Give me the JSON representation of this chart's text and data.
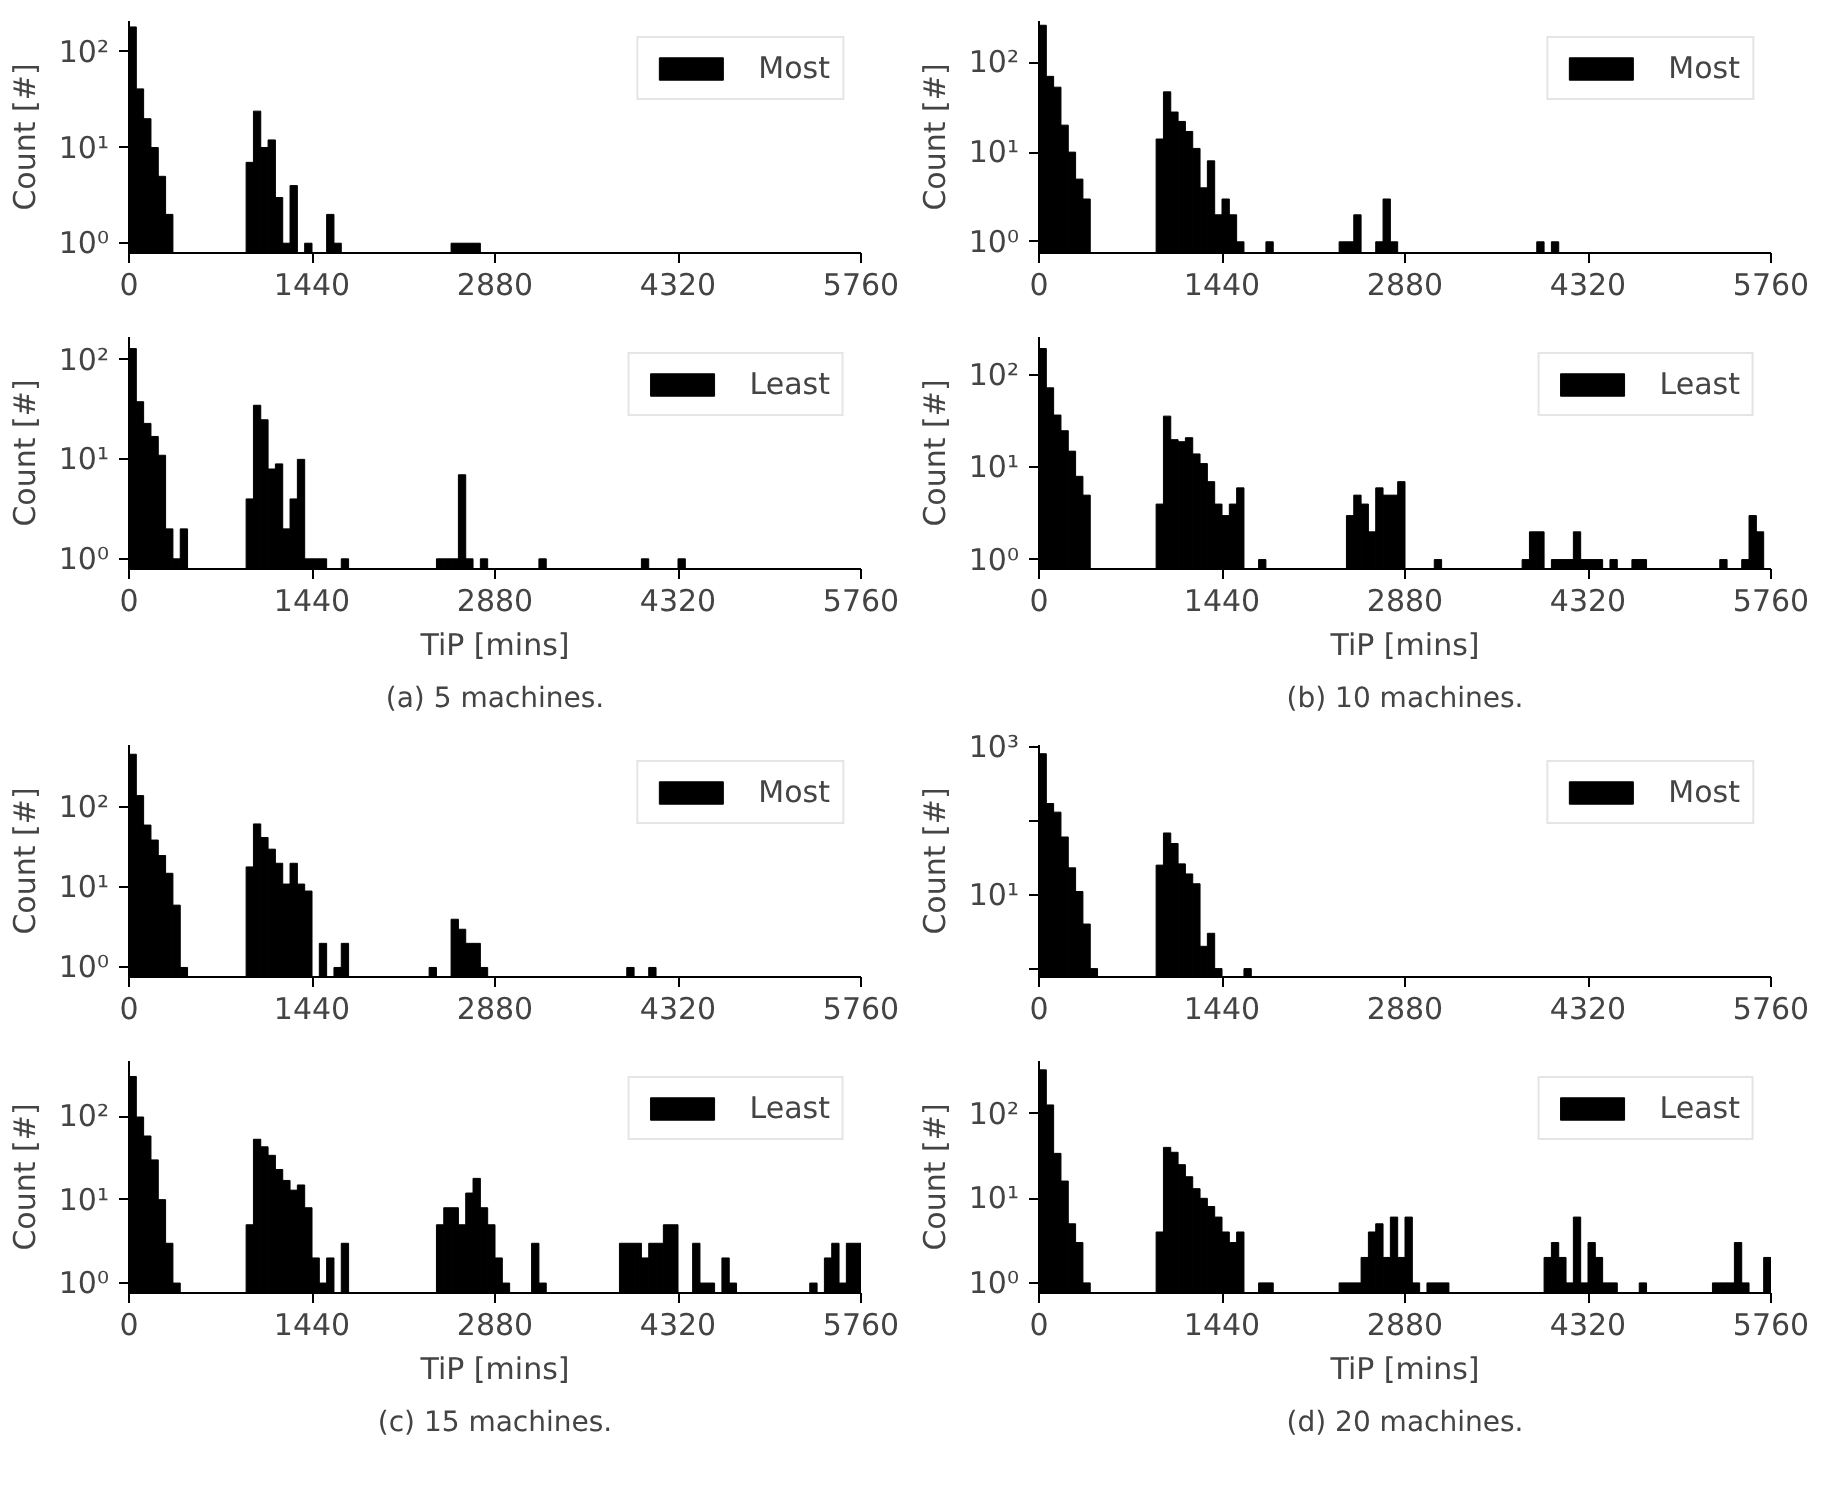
{
  "chart_data": [
    {
      "type": "histogram",
      "ylabel": "Count [#]",
      "log": true,
      "legend": "top right",
      "xlim": [
        0,
        5760
      ],
      "xticks": [
        0,
        1440,
        2880,
        4320,
        5760
      ],
      "ylim": [
        0.79,
        210
      ],
      "yticks": [
        {
          "value": 1,
          "label": "10⁰"
        },
        {
          "value": 10,
          "label": "10¹"
        },
        {
          "value": 100,
          "label": "10²"
        }
      ],
      "bins": [
        0,
        57.6,
        115.2,
        172.8,
        230.4,
        288,
        345.6,
        403.2,
        460.8,
        518.4,
        576,
        633.6,
        691.2,
        748.8,
        806.4,
        864,
        921.6,
        979.2,
        1036.8,
        1094.4,
        1152,
        1209.6,
        1267.2,
        1324.8,
        1382.4,
        1440,
        1497.6,
        1555.2,
        1612.8,
        1670.4,
        1728,
        1785.6,
        1843.2,
        1900.8,
        1958.4,
        2016,
        2073.6,
        2131.2,
        2188.8,
        2246.4,
        2304,
        2361.6,
        2419.2,
        2476.8,
        2534.4,
        2592,
        2649.6,
        2707.2,
        2764.8,
        2822.4,
        2880,
        2937.6,
        2995.2,
        3052.8,
        3110.4,
        3168,
        3225.6,
        3283.2,
        3340.8,
        3398.4,
        3456,
        3513.6,
        3571.2,
        3628.8,
        3686.4,
        3744,
        3801.6,
        3859.2,
        3916.8,
        3974.4,
        4032,
        4089.6,
        4147.2,
        4204.8,
        4262.4,
        4320,
        4377.6,
        4435.2,
        4492.8,
        4550.4,
        4608,
        4665.6,
        4723.2,
        4780.8,
        4838.4,
        4896,
        4953.6,
        5011.2,
        5068.8,
        5126.4,
        5184,
        5241.6,
        5299.2,
        5356.8,
        5414.4,
        5472,
        5529.6,
        5587.2,
        5644.8,
        5702.4,
        5760
      ],
      "series": [
        {
          "name": "Most",
          "color": "#000000",
          "values": [
            182,
            41,
            20,
            10,
            5,
            2,
            null,
            null,
            null,
            null,
            null,
            null,
            null,
            null,
            null,
            null,
            7,
            24,
            10,
            12,
            3,
            1,
            4,
            null,
            1,
            null,
            null,
            2,
            1,
            null,
            null,
            null,
            null,
            null,
            null,
            null,
            null,
            null,
            null,
            null,
            null,
            null,
            null,
            null,
            1,
            1,
            1,
            1,
            null,
            null,
            null,
            null,
            null,
            null,
            null,
            null,
            null,
            null,
            null,
            null,
            null,
            null,
            null,
            null,
            null,
            null,
            null,
            null,
            null,
            null,
            null,
            null,
            null,
            null,
            null,
            null,
            null,
            null,
            null,
            null,
            null,
            null,
            null,
            null,
            null,
            null,
            null,
            null,
            null,
            null,
            null,
            null,
            null,
            null,
            null,
            null,
            null,
            null,
            null,
            null
          ]
        }
      ]
    },
    {
      "type": "histogram",
      "ylabel": "Count [#]",
      "xlabel": "TiP [mins]",
      "annotations": [
        "(a) 5 machines."
      ],
      "log": true,
      "legend": "top right",
      "xlim": [
        0,
        5760
      ],
      "xticks": [
        0,
        1440,
        2880,
        4320,
        5760
      ],
      "ylim": [
        0.79,
        170
      ],
      "yticks": [
        {
          "value": 1,
          "label": "10⁰"
        },
        {
          "value": 10,
          "label": "10¹"
        },
        {
          "value": 100,
          "label": "10²"
        }
      ],
      "bins": [
        0,
        57.6,
        115.2,
        172.8,
        230.4,
        288,
        345.6,
        403.2,
        460.8,
        518.4,
        576,
        633.6,
        691.2,
        748.8,
        806.4,
        864,
        921.6,
        979.2,
        1036.8,
        1094.4,
        1152,
        1209.6,
        1267.2,
        1324.8,
        1382.4,
        1440,
        1497.6,
        1555.2,
        1612.8,
        1670.4,
        1728,
        1785.6,
        1843.2,
        1900.8,
        1958.4,
        2016,
        2073.6,
        2131.2,
        2188.8,
        2246.4,
        2304,
        2361.6,
        2419.2,
        2476.8,
        2534.4,
        2592,
        2649.6,
        2707.2,
        2764.8,
        2822.4,
        2880,
        2937.6,
        2995.2,
        3052.8,
        3110.4,
        3168,
        3225.6,
        3283.2,
        3340.8,
        3398.4,
        3456,
        3513.6,
        3571.2,
        3628.8,
        3686.4,
        3744,
        3801.6,
        3859.2,
        3916.8,
        3974.4,
        4032,
        4089.6,
        4147.2,
        4204.8,
        4262.4,
        4320,
        4377.6,
        4435.2,
        4492.8,
        4550.4,
        4608,
        4665.6,
        4723.2,
        4780.8,
        4838.4,
        4896,
        4953.6,
        5011.2,
        5068.8,
        5126.4,
        5184,
        5241.6,
        5299.2,
        5356.8,
        5414.4,
        5472,
        5529.6,
        5587.2,
        5644.8,
        5702.4,
        5760
      ],
      "series": [
        {
          "name": "Least",
          "color": "#000000",
          "values": [
            130,
            38,
            23,
            17,
            11,
            2,
            1,
            2,
            null,
            null,
            null,
            null,
            null,
            null,
            null,
            null,
            4,
            35,
            25,
            8,
            9,
            2,
            4,
            10,
            1,
            1,
            1,
            null,
            null,
            1,
            null,
            null,
            null,
            null,
            null,
            null,
            null,
            null,
            null,
            null,
            null,
            null,
            1,
            1,
            1,
            7,
            1,
            null,
            1,
            null,
            null,
            null,
            null,
            null,
            null,
            null,
            1,
            null,
            null,
            null,
            null,
            null,
            null,
            null,
            null,
            null,
            null,
            null,
            null,
            null,
            1,
            null,
            null,
            null,
            null,
            1,
            null,
            null,
            null,
            null,
            null,
            null,
            null,
            null,
            null,
            null,
            null,
            null,
            null,
            null,
            null,
            null,
            null,
            null,
            null,
            null,
            null,
            null,
            null,
            null
          ]
        }
      ]
    },
    {
      "type": "histogram",
      "ylabel": "Count [#]",
      "log": true,
      "legend": "top right",
      "xlim": [
        0,
        5760
      ],
      "xticks": [
        0,
        1440,
        2880,
        4320,
        5760
      ],
      "ylim": [
        0.75,
        290
      ],
      "yticks": [
        {
          "value": 1,
          "label": "10⁰"
        },
        {
          "value": 10,
          "label": "10¹"
        },
        {
          "value": 100,
          "label": "10²"
        }
      ],
      "bins": [
        0,
        57.6,
        115.2,
        172.8,
        230.4,
        288,
        345.6,
        403.2,
        460.8,
        518.4,
        576,
        633.6,
        691.2,
        748.8,
        806.4,
        864,
        921.6,
        979.2,
        1036.8,
        1094.4,
        1152,
        1209.6,
        1267.2,
        1324.8,
        1382.4,
        1440,
        1497.6,
        1555.2,
        1612.8,
        1670.4,
        1728,
        1785.6,
        1843.2,
        1900.8,
        1958.4,
        2016,
        2073.6,
        2131.2,
        2188.8,
        2246.4,
        2304,
        2361.6,
        2419.2,
        2476.8,
        2534.4,
        2592,
        2649.6,
        2707.2,
        2764.8,
        2822.4,
        2880,
        2937.6,
        2995.2,
        3052.8,
        3110.4,
        3168,
        3225.6,
        3283.2,
        3340.8,
        3398.4,
        3456,
        3513.6,
        3571.2,
        3628.8,
        3686.4,
        3744,
        3801.6,
        3859.2,
        3916.8,
        3974.4,
        4032,
        4089.6,
        4147.2,
        4204.8,
        4262.4,
        4320,
        4377.6,
        4435.2,
        4492.8,
        4550.4,
        4608,
        4665.6,
        4723.2,
        4780.8,
        4838.4,
        4896,
        4953.6,
        5011.2,
        5068.8,
        5126.4,
        5184,
        5241.6,
        5299.2,
        5356.8,
        5414.4,
        5472,
        5529.6,
        5587.2,
        5644.8,
        5702.4,
        5760
      ],
      "series": [
        {
          "name": "Most",
          "color": "#000000",
          "values": [
            260,
            70,
            53,
            20,
            10,
            5,
            3,
            null,
            null,
            null,
            null,
            null,
            null,
            null,
            null,
            null,
            14,
            47,
            28,
            22,
            17,
            11,
            4,
            8,
            2,
            3,
            2,
            1,
            null,
            null,
            null,
            1,
            null,
            null,
            null,
            null,
            null,
            null,
            null,
            null,
            null,
            1,
            1,
            2,
            null,
            null,
            1,
            3,
            1,
            null,
            null,
            null,
            null,
            null,
            null,
            null,
            null,
            null,
            null,
            null,
            null,
            null,
            null,
            null,
            null,
            null,
            null,
            null,
            1,
            null,
            1,
            null,
            null,
            null,
            null,
            null,
            null,
            null,
            null,
            null,
            null,
            null,
            null,
            null,
            null,
            null,
            null,
            null,
            null,
            null,
            null,
            null,
            null,
            null,
            null,
            null,
            null,
            null,
            null,
            null
          ]
        }
      ]
    },
    {
      "type": "histogram",
      "ylabel": "Count [#]",
      "xlabel": "TiP [mins]",
      "annotations": [
        "(b) 10 machines."
      ],
      "log": true,
      "legend": "top right",
      "xlim": [
        0,
        5760
      ],
      "xticks": [
        0,
        1440,
        2880,
        4320,
        5760
      ],
      "ylim": [
        0.79,
        260
      ],
      "yticks": [
        {
          "value": 1,
          "label": "10⁰"
        },
        {
          "value": 10,
          "label": "10¹"
        },
        {
          "value": 100,
          "label": "10²"
        }
      ],
      "bins": [
        0,
        57.6,
        115.2,
        172.8,
        230.4,
        288,
        345.6,
        403.2,
        460.8,
        518.4,
        576,
        633.6,
        691.2,
        748.8,
        806.4,
        864,
        921.6,
        979.2,
        1036.8,
        1094.4,
        1152,
        1209.6,
        1267.2,
        1324.8,
        1382.4,
        1440,
        1497.6,
        1555.2,
        1612.8,
        1670.4,
        1728,
        1785.6,
        1843.2,
        1900.8,
        1958.4,
        2016,
        2073.6,
        2131.2,
        2188.8,
        2246.4,
        2304,
        2361.6,
        2419.2,
        2476.8,
        2534.4,
        2592,
        2649.6,
        2707.2,
        2764.8,
        2822.4,
        2880,
        2937.6,
        2995.2,
        3052.8,
        3110.4,
        3168,
        3225.6,
        3283.2,
        3340.8,
        3398.4,
        3456,
        3513.6,
        3571.2,
        3628.8,
        3686.4,
        3744,
        3801.6,
        3859.2,
        3916.8,
        3974.4,
        4032,
        4089.6,
        4147.2,
        4204.8,
        4262.4,
        4320,
        4377.6,
        4435.2,
        4492.8,
        4550.4,
        4608,
        4665.6,
        4723.2,
        4780.8,
        4838.4,
        4896,
        4953.6,
        5011.2,
        5068.8,
        5126.4,
        5184,
        5241.6,
        5299.2,
        5356.8,
        5414.4,
        5472,
        5529.6,
        5587.2,
        5644.8,
        5702.4,
        5760
      ],
      "series": [
        {
          "name": "Least",
          "color": "#000000",
          "values": [
            195,
            73,
            37,
            25,
            15,
            8,
            5,
            null,
            null,
            null,
            null,
            null,
            null,
            null,
            null,
            null,
            4,
            36,
            20,
            19,
            21,
            14,
            11,
            7,
            4,
            3,
            4,
            6,
            null,
            null,
            1,
            null,
            null,
            null,
            null,
            null,
            null,
            null,
            null,
            null,
            null,
            null,
            3,
            5,
            4,
            2,
            6,
            5,
            5,
            7,
            null,
            null,
            null,
            null,
            1,
            null,
            null,
            null,
            null,
            null,
            null,
            null,
            null,
            null,
            null,
            null,
            1,
            2,
            2,
            null,
            1,
            1,
            1,
            2,
            1,
            1,
            1,
            null,
            1,
            null,
            null,
            1,
            1,
            null,
            null,
            null,
            null,
            null,
            null,
            null,
            null,
            null,
            null,
            1,
            null,
            null,
            1,
            3,
            2,
            null
          ]
        }
      ]
    },
    {
      "type": "histogram",
      "ylabel": "Count [#]",
      "log": true,
      "legend": "top right",
      "xlim": [
        0,
        5760
      ],
      "xticks": [
        0,
        1440,
        2880,
        4320,
        5760
      ],
      "ylim": [
        0.76,
        600
      ],
      "yticks": [
        {
          "value": 1,
          "label": "10⁰"
        },
        {
          "value": 10,
          "label": "10¹"
        },
        {
          "value": 100,
          "label": "10²"
        }
      ],
      "bins": [
        0,
        57.6,
        115.2,
        172.8,
        230.4,
        288,
        345.6,
        403.2,
        460.8,
        518.4,
        576,
        633.6,
        691.2,
        748.8,
        806.4,
        864,
        921.6,
        979.2,
        1036.8,
        1094.4,
        1152,
        1209.6,
        1267.2,
        1324.8,
        1382.4,
        1440,
        1497.6,
        1555.2,
        1612.8,
        1670.4,
        1728,
        1785.6,
        1843.2,
        1900.8,
        1958.4,
        2016,
        2073.6,
        2131.2,
        2188.8,
        2246.4,
        2304,
        2361.6,
        2419.2,
        2476.8,
        2534.4,
        2592,
        2649.6,
        2707.2,
        2764.8,
        2822.4,
        2880,
        2937.6,
        2995.2,
        3052.8,
        3110.4,
        3168,
        3225.6,
        3283.2,
        3340.8,
        3398.4,
        3456,
        3513.6,
        3571.2,
        3628.8,
        3686.4,
        3744,
        3801.6,
        3859.2,
        3916.8,
        3974.4,
        4032,
        4089.6,
        4147.2,
        4204.8,
        4262.4,
        4320,
        4377.6,
        4435.2,
        4492.8,
        4550.4,
        4608,
        4665.6,
        4723.2,
        4780.8,
        4838.4,
        4896,
        4953.6,
        5011.2,
        5068.8,
        5126.4,
        5184,
        5241.6,
        5299.2,
        5356.8,
        5414.4,
        5472,
        5529.6,
        5587.2,
        5644.8,
        5702.4,
        5760
      ],
      "series": [
        {
          "name": "Most",
          "color": "#000000",
          "values": [
            460,
            140,
            60,
            39,
            25,
            15,
            6,
            1,
            null,
            null,
            null,
            null,
            null,
            null,
            null,
            null,
            18,
            62,
            42,
            30,
            20,
            11,
            20,
            11,
            9,
            null,
            2,
            null,
            1,
            2,
            null,
            null,
            null,
            null,
            null,
            null,
            null,
            null,
            null,
            null,
            null,
            1,
            null,
            null,
            4,
            3,
            2,
            2,
            1,
            null,
            null,
            null,
            null,
            null,
            null,
            null,
            null,
            null,
            null,
            null,
            null,
            null,
            null,
            null,
            null,
            null,
            null,
            null,
            1,
            null,
            null,
            1,
            null,
            null,
            null,
            null,
            null,
            null,
            null,
            null,
            null,
            null,
            null,
            null,
            null,
            null,
            null,
            null,
            null,
            null,
            null,
            null,
            null,
            null,
            null,
            null,
            null,
            null,
            null,
            null
          ]
        }
      ]
    },
    {
      "type": "histogram",
      "ylabel": "Count [#]",
      "xlabel": "TiP [mins]",
      "annotations": [
        "(c) 15 machines."
      ],
      "log": true,
      "legend": "top right",
      "xlim": [
        0,
        5760
      ],
      "xticks": [
        0,
        1440,
        2880,
        4320,
        5760
      ],
      "ylim": [
        0.76,
        460
      ],
      "yticks": [
        {
          "value": 1,
          "label": "10⁰"
        },
        {
          "value": 10,
          "label": "10¹"
        },
        {
          "value": 100,
          "label": "10²"
        }
      ],
      "bins": [
        0,
        57.6,
        115.2,
        172.8,
        230.4,
        288,
        345.6,
        403.2,
        460.8,
        518.4,
        576,
        633.6,
        691.2,
        748.8,
        806.4,
        864,
        921.6,
        979.2,
        1036.8,
        1094.4,
        1152,
        1209.6,
        1267.2,
        1324.8,
        1382.4,
        1440,
        1497.6,
        1555.2,
        1612.8,
        1670.4,
        1728,
        1785.6,
        1843.2,
        1900.8,
        1958.4,
        2016,
        2073.6,
        2131.2,
        2188.8,
        2246.4,
        2304,
        2361.6,
        2419.2,
        2476.8,
        2534.4,
        2592,
        2649.6,
        2707.2,
        2764.8,
        2822.4,
        2880,
        2937.6,
        2995.2,
        3052.8,
        3110.4,
        3168,
        3225.6,
        3283.2,
        3340.8,
        3398.4,
        3456,
        3513.6,
        3571.2,
        3628.8,
        3686.4,
        3744,
        3801.6,
        3859.2,
        3916.8,
        3974.4,
        4032,
        4089.6,
        4147.2,
        4204.8,
        4262.4,
        4320,
        4377.6,
        4435.2,
        4492.8,
        4550.4,
        4608,
        4665.6,
        4723.2,
        4780.8,
        4838.4,
        4896,
        4953.6,
        5011.2,
        5068.8,
        5126.4,
        5184,
        5241.6,
        5299.2,
        5356.8,
        5414.4,
        5472,
        5529.6,
        5587.2,
        5644.8,
        5702.4,
        5760
      ],
      "series": [
        {
          "name": "Least",
          "color": "#000000",
          "values": [
            300,
            98,
            58,
            30,
            10,
            3,
            1,
            null,
            null,
            null,
            null,
            null,
            null,
            null,
            null,
            null,
            5,
            53,
            43,
            34,
            23,
            17,
            13,
            15,
            8,
            2,
            1,
            2,
            null,
            3,
            null,
            null,
            null,
            null,
            null,
            null,
            null,
            null,
            null,
            null,
            null,
            null,
            5,
            8,
            8,
            5,
            12,
            18,
            8,
            5,
            2,
            1,
            null,
            null,
            null,
            3,
            1,
            null,
            null,
            null,
            null,
            null,
            null,
            null,
            null,
            null,
            null,
            3,
            3,
            3,
            2,
            3,
            3,
            5,
            5,
            null,
            null,
            3,
            1,
            1,
            null,
            2,
            1,
            null,
            null,
            null,
            null,
            null,
            null,
            null,
            null,
            null,
            null,
            1,
            null,
            2,
            3,
            1,
            3,
            3
          ]
        }
      ]
    },
    {
      "type": "histogram",
      "ylabel": "Count [#]",
      "log": true,
      "legend": "top right",
      "xlim": [
        0,
        5760
      ],
      "xticks": [
        0,
        1440,
        2880,
        4320,
        5760
      ],
      "ylim": [
        0.77,
        1050
      ],
      "yticks": [
        {
          "value": 1,
          "label": null
        },
        {
          "value": 10,
          "label": "10¹"
        },
        {
          "value": 100,
          "label": null
        },
        {
          "value": 1000,
          "label": "10³"
        }
      ],
      "bins": [
        0,
        57.6,
        115.2,
        172.8,
        230.4,
        288,
        345.6,
        403.2,
        460.8,
        518.4,
        576,
        633.6,
        691.2,
        748.8,
        806.4,
        864,
        921.6,
        979.2,
        1036.8,
        1094.4,
        1152,
        1209.6,
        1267.2,
        1324.8,
        1382.4,
        1440,
        1497.6,
        1555.2,
        1612.8,
        1670.4,
        1728,
        1785.6,
        1843.2,
        1900.8,
        1958.4,
        2016,
        2073.6,
        2131.2,
        2188.8,
        2246.4,
        2304,
        2361.6,
        2419.2,
        2476.8,
        2534.4,
        2592,
        2649.6,
        2707.2,
        2764.8,
        2822.4,
        2880,
        2937.6,
        2995.2,
        3052.8,
        3110.4,
        3168,
        3225.6,
        3283.2,
        3340.8,
        3398.4,
        3456,
        3513.6,
        3571.2,
        3628.8,
        3686.4,
        3744,
        3801.6,
        3859.2,
        3916.8,
        3974.4,
        4032,
        4089.6,
        4147.2,
        4204.8,
        4262.4,
        4320,
        4377.6,
        4435.2,
        4492.8,
        4550.4,
        4608,
        4665.6,
        4723.2,
        4780.8,
        4838.4,
        4896,
        4953.6,
        5011.2,
        5068.8,
        5126.4,
        5184,
        5241.6,
        5299.2,
        5356.8,
        5414.4,
        5472,
        5529.6,
        5587.2,
        5644.8,
        5702.4,
        5760
      ],
      "series": [
        {
          "name": "Most",
          "color": "#000000",
          "values": [
            800,
            170,
            130,
            60,
            23,
            11,
            4,
            1,
            null,
            null,
            null,
            null,
            null,
            null,
            null,
            null,
            25,
            68,
            49,
            26,
            19,
            14,
            2,
            3,
            1,
            null,
            null,
            null,
            1,
            null,
            null,
            null,
            null,
            null,
            null,
            null,
            null,
            null,
            null,
            null,
            null,
            null,
            null,
            null,
            null,
            null,
            null,
            null,
            null,
            null,
            null,
            null,
            null,
            null,
            null,
            null,
            null,
            null,
            null,
            null,
            null,
            null,
            null,
            null,
            null,
            null,
            null,
            null,
            null,
            null,
            null,
            null,
            null,
            null,
            null,
            null,
            null,
            null,
            null,
            null,
            null,
            null,
            null,
            null,
            null,
            null,
            null,
            null,
            null,
            null,
            null,
            null,
            null,
            null,
            null,
            null,
            null,
            null,
            null,
            null
          ]
        }
      ]
    },
    {
      "type": "histogram",
      "ylabel": "Count [#]",
      "xlabel": "TiP [mins]",
      "annotations": [
        "(d) 20 machines."
      ],
      "log": true,
      "legend": "top right",
      "xlim": [
        0,
        5760
      ],
      "xticks": [
        0,
        1440,
        2880,
        4320,
        5760
      ],
      "ylim": [
        0.76,
        420
      ],
      "yticks": [
        {
          "value": 1,
          "label": "10⁰"
        },
        {
          "value": 10,
          "label": "10¹"
        },
        {
          "value": 100,
          "label": "10²"
        }
      ],
      "bins": [
        0,
        57.6,
        115.2,
        172.8,
        230.4,
        288,
        345.6,
        403.2,
        460.8,
        518.4,
        576,
        633.6,
        691.2,
        748.8,
        806.4,
        864,
        921.6,
        979.2,
        1036.8,
        1094.4,
        1152,
        1209.6,
        1267.2,
        1324.8,
        1382.4,
        1440,
        1497.6,
        1555.2,
        1612.8,
        1670.4,
        1728,
        1785.6,
        1843.2,
        1900.8,
        1958.4,
        2016,
        2073.6,
        2131.2,
        2188.8,
        2246.4,
        2304,
        2361.6,
        2419.2,
        2476.8,
        2534.4,
        2592,
        2649.6,
        2707.2,
        2764.8,
        2822.4,
        2880,
        2937.6,
        2995.2,
        3052.8,
        3110.4,
        3168,
        3225.6,
        3283.2,
        3340.8,
        3398.4,
        3456,
        3513.6,
        3571.2,
        3628.8,
        3686.4,
        3744,
        3801.6,
        3859.2,
        3916.8,
        3974.4,
        4032,
        4089.6,
        4147.2,
        4204.8,
        4262.4,
        4320,
        4377.6,
        4435.2,
        4492.8,
        4550.4,
        4608,
        4665.6,
        4723.2,
        4780.8,
        4838.4,
        4896,
        4953.6,
        5011.2,
        5068.8,
        5126.4,
        5184,
        5241.6,
        5299.2,
        5356.8,
        5414.4,
        5472,
        5529.6,
        5587.2,
        5644.8,
        5702.4,
        5760
      ],
      "series": [
        {
          "name": "Least",
          "color": "#000000",
          "values": [
            330,
            127,
            34,
            16,
            5,
            3,
            1,
            null,
            null,
            null,
            null,
            null,
            null,
            null,
            null,
            null,
            4,
            40,
            35,
            25,
            18,
            13,
            10,
            8,
            6,
            4,
            3,
            4,
            null,
            null,
            1,
            1,
            null,
            null,
            null,
            null,
            null,
            null,
            null,
            null,
            null,
            1,
            1,
            1,
            2,
            4,
            5,
            2,
            6,
            2,
            6,
            1,
            null,
            1,
            1,
            1,
            null,
            null,
            null,
            null,
            null,
            null,
            null,
            null,
            null,
            null,
            null,
            null,
            null,
            2,
            3,
            2,
            1,
            6,
            1,
            3,
            2,
            1,
            1,
            null,
            null,
            null,
            1,
            null,
            null,
            null,
            null,
            null,
            null,
            null,
            null,
            null,
            1,
            1,
            1,
            3,
            1,
            null,
            null,
            2
          ]
        }
      ]
    }
  ]
}
